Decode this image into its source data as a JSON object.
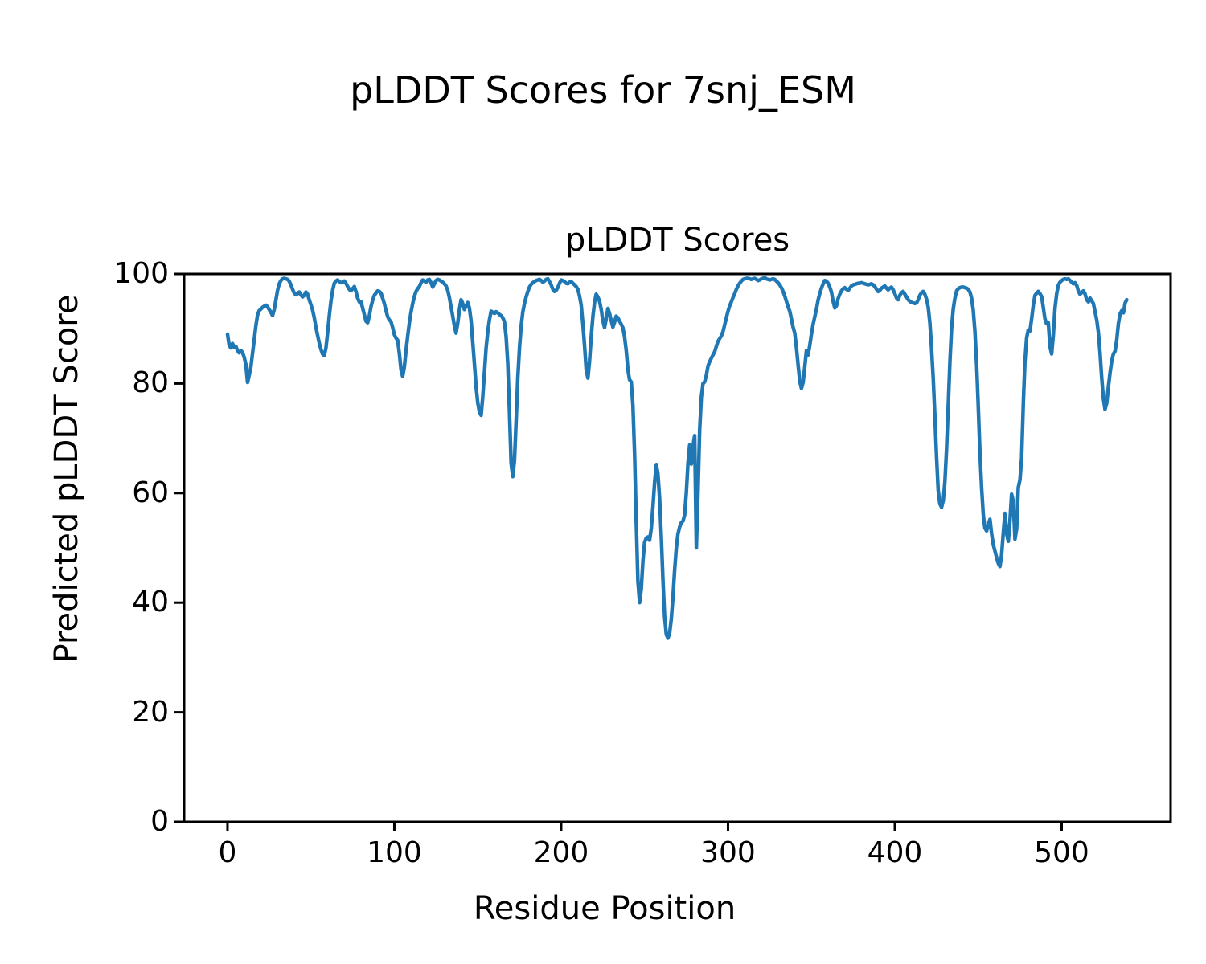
{
  "figure": {
    "suptitle": "pLDDT Scores for 7snj_ESM",
    "background": "#ffffff",
    "text_color": "#000000"
  },
  "axes": {
    "title": "pLDDT Scores",
    "xlabel": "Residue Position",
    "ylabel": "Predicted pLDDT Score",
    "spine_color": "#000000"
  },
  "chart_data": {
    "type": "line",
    "title": "pLDDT Scores",
    "xlabel": "Residue Position",
    "ylabel": "Predicted pLDDT Score",
    "line_color": "#1f77b4",
    "grid": false,
    "legend": null,
    "xlim": [
      -26,
      565.3
    ],
    "ylim": [
      0,
      100
    ],
    "xticks": [
      0,
      100,
      200,
      300,
      400,
      500
    ],
    "yticks": [
      0,
      20,
      40,
      60,
      80,
      100
    ],
    "x_start": 0,
    "x_step": 1,
    "values": [
      89,
      87,
      86.5,
      87.3,
      86.6,
      86.8,
      86,
      85.6,
      86,
      85.7,
      84.8,
      83.5,
      80.2,
      81.5,
      83,
      85.5,
      88,
      90.5,
      92.5,
      93.3,
      93.6,
      93.9,
      94.1,
      94.3,
      94,
      93.5,
      93,
      92.4,
      93.5,
      95.2,
      97,
      98.2,
      98.8,
      99.1,
      99.2,
      99.1,
      99,
      98.7,
      98,
      97.2,
      96.5,
      96.2,
      96.4,
      96.7,
      96.2,
      95.8,
      96.1,
      96.7,
      96.3,
      95.3,
      94.4,
      93.4,
      92,
      90.3,
      88.8,
      87.4,
      86.2,
      85.4,
      85.1,
      86.5,
      89.3,
      92.3,
      95,
      97,
      98.3,
      98.7,
      98.9,
      98.6,
      98.4,
      98.5,
      98.7,
      98.3,
      97.7,
      97.2,
      96.9,
      97.3,
      97.7,
      96.8,
      95.6,
      94.9,
      94.9,
      93.8,
      92.6,
      91.4,
      91.1,
      92.3,
      94,
      95.2,
      96.1,
      96.5,
      96.9,
      96.8,
      96.5,
      95.6,
      94.6,
      93.3,
      92.2,
      91.6,
      91.3,
      90.2,
      88.9,
      88.3,
      87.9,
      85.5,
      82.5,
      81.3,
      83,
      86,
      88.7,
      91,
      93,
      94.6,
      95.9,
      96.8,
      97.3,
      97.7,
      98.4,
      98.9,
      98.7,
      98.5,
      98.9,
      99,
      98.4,
      97.6,
      98.2,
      98.8,
      99,
      98.9,
      98.7,
      98.5,
      98.2,
      97.8,
      97,
      95.7,
      94,
      92.3,
      90.5,
      89.2,
      91,
      93.5,
      95.3,
      94.6,
      93.5,
      94.2,
      94.8,
      93.8,
      91.5,
      87.5,
      83.5,
      79.5,
      76.5,
      74.8,
      74.2,
      77.5,
      82,
      86.5,
      89.5,
      91.6,
      93.2,
      93,
      92.8,
      93.1,
      92.9,
      92.6,
      92.4,
      92,
      91.3,
      88.5,
      83.5,
      75,
      65.5,
      63,
      66,
      73,
      81,
      86.5,
      90.5,
      93,
      94.6,
      95.8,
      96.8,
      97.6,
      98.1,
      98.4,
      98.6,
      98.8,
      98.9,
      99,
      98.8,
      98.5,
      98.7,
      99,
      99.1,
      98.6,
      98,
      97.2,
      96.8,
      97,
      97.5,
      98.3,
      98.9,
      98.8,
      98.6,
      98.3,
      98.2,
      98.5,
      98.6,
      98.3,
      98,
      97.7,
      97.2,
      96,
      94.3,
      91,
      87,
      82.5,
      81,
      84,
      88.5,
      92.2,
      94.8,
      96.3,
      95.8,
      95,
      93.5,
      91.5,
      90.2,
      91.8,
      93.7,
      92.8,
      91.5,
      90.3,
      91.2,
      92.3,
      92,
      91.4,
      90.8,
      90.2,
      88.5,
      86,
      82.5,
      80.7,
      80.3,
      76,
      67,
      55,
      44,
      40,
      42.5,
      47.5,
      51,
      51.8,
      52,
      51.4,
      53.5,
      57.5,
      62,
      65.2,
      63.5,
      59,
      52,
      44,
      37.5,
      34.2,
      33.5,
      34.5,
      37,
      41,
      46,
      50,
      52.5,
      53.8,
      54.6,
      54.9,
      56,
      60,
      65.5,
      68.8,
      65.3,
      68.5,
      70.5,
      50,
      60,
      71.5,
      77.5,
      80,
      80.3,
      81.5,
      83.2,
      84,
      84.6,
      85.2,
      85.8,
      86.8,
      87.7,
      88.2,
      88.7,
      89.5,
      90.7,
      92,
      93.2,
      94.2,
      94.9,
      95.7,
      96.4,
      97.2,
      97.8,
      98.3,
      98.7,
      99,
      99.1,
      99.2,
      99.2,
      99.1,
      99,
      99.1,
      99.2,
      99,
      98.8,
      98.9,
      99.1,
      99.2,
      99.3,
      99.1,
      99,
      98.9,
      99,
      99.1,
      99,
      98.7,
      98.4,
      98,
      97.5,
      96.8,
      96,
      95,
      94,
      93.2,
      91.8,
      90.3,
      89.2,
      86.5,
      83.5,
      80.5,
      79.1,
      80.2,
      83,
      86,
      85.2,
      87,
      89,
      90.8,
      92.2,
      93.6,
      95.2,
      96.4,
      97.4,
      98.2,
      98.8,
      98.7,
      98.3,
      97.6,
      96.7,
      95,
      93.8,
      94.2,
      95.5,
      96.3,
      96.9,
      97.3,
      97.5,
      97.2,
      97,
      97.4,
      97.8,
      98,
      98.1,
      98.2,
      98.3,
      98.3,
      98.4,
      98.3,
      98.2,
      98.1,
      98,
      98.1,
      98.2,
      98,
      97.7,
      97.2,
      96.8,
      97,
      97.4,
      97.6,
      97.8,
      97.4,
      97.1,
      97.4,
      97.6,
      97.1,
      96.4,
      95.6,
      95.3,
      96.1,
      96.6,
      96.8,
      96.3,
      95.8,
      95.3,
      95,
      94.8,
      94.7,
      94.6,
      94.7,
      95.3,
      96.1,
      96.6,
      96.8,
      96.3,
      95.4,
      93.9,
      91,
      86.5,
      81,
      74,
      66.5,
      60.5,
      58,
      57.4,
      58.6,
      62,
      68,
      76,
      84,
      90,
      93.6,
      95.6,
      96.9,
      97.3,
      97.5,
      97.6,
      97.6,
      97.5,
      97.4,
      97.2,
      96.7,
      95.6,
      93.4,
      89.5,
      83.5,
      76,
      67.5,
      61,
      56,
      53.6,
      53.1,
      54.3,
      55.2,
      52.6,
      50.6,
      49.4,
      48.2,
      47.2,
      46.6,
      48.8,
      52.8,
      56.3,
      52.6,
      51.2,
      55,
      59.8,
      58.5,
      51.6,
      53.5,
      61,
      62.4,
      66.5,
      76.5,
      84,
      88.3,
      89.8,
      89.6,
      91.8,
      94.3,
      96.1,
      96.5,
      96.8,
      96.4,
      95.9,
      93.8,
      91.8,
      90.9,
      91.1,
      86.7,
      85.4,
      88.8,
      93.8,
      96.4,
      97.9,
      98.5,
      98.8,
      99,
      99.1,
      99,
      99.1,
      98.8,
      98.5,
      98.2,
      98.4,
      97.9,
      96.9,
      96.3,
      96.6,
      96.9,
      96.4,
      95.3,
      94.9,
      95.6,
      95.1,
      94.6,
      93.1,
      91.6,
      89.4,
      85.6,
      81,
      77.2,
      75.3,
      76.4,
      79.4,
      82,
      84.1,
      85.4,
      85.9,
      88,
      90.9,
      92.7,
      93.3,
      92.9,
      94.7,
      95.3
    ]
  }
}
